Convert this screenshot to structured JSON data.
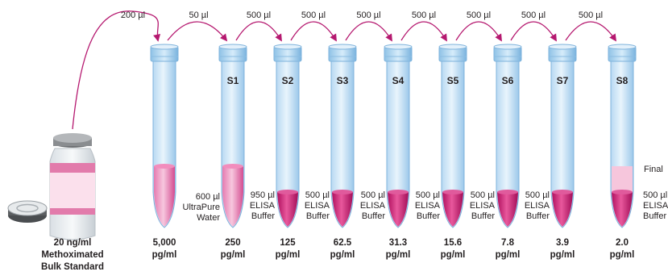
{
  "source": {
    "concentration": "20 ng/ml",
    "name_line1": "Methoximated",
    "name_line2": "Bulk Standard"
  },
  "transfers": [
    "200 µl",
    "50 µl",
    "500 µl",
    "500 µl",
    "500 µl",
    "500 µl",
    "500 µl",
    "500 µl",
    "500 µl"
  ],
  "tubes": [
    {
      "label": "",
      "conc_value": "5,000",
      "conc_unit": "pg/ml",
      "diluent": []
    },
    {
      "label": "S1",
      "conc_value": "250",
      "conc_unit": "pg/ml",
      "diluent": [
        "600 µl",
        "UltraPure",
        "Water"
      ]
    },
    {
      "label": "S2",
      "conc_value": "125",
      "conc_unit": "pg/ml",
      "diluent": [
        "950 µl",
        "ELISA",
        "Buffer"
      ]
    },
    {
      "label": "S3",
      "conc_value": "62.5",
      "conc_unit": "pg/ml",
      "diluent": [
        "500 µl",
        "ELISA",
        "Buffer"
      ]
    },
    {
      "label": "S4",
      "conc_value": "31.3",
      "conc_unit": "pg/ml",
      "diluent": [
        "500 µl",
        "ELISA",
        "Buffer"
      ]
    },
    {
      "label": "S5",
      "conc_value": "15.6",
      "conc_unit": "pg/ml",
      "diluent": [
        "500 µl",
        "ELISA",
        "Buffer"
      ]
    },
    {
      "label": "S6",
      "conc_value": "7.8",
      "conc_unit": "pg/ml",
      "diluent": [
        "500 µl",
        "ELISA",
        "Buffer"
      ]
    },
    {
      "label": "S7",
      "conc_value": "3.9",
      "conc_unit": "pg/ml",
      "diluent": [
        "500 µl",
        "ELISA",
        "Buffer"
      ]
    },
    {
      "label": "S8",
      "conc_value": "2.0",
      "conc_unit": "pg/ml",
      "diluent": [
        "500 µl",
        "ELISA",
        "Buffer"
      ]
    }
  ],
  "final_label": "Final",
  "colors": {
    "arrow": "#b5186f",
    "tube_fill": "#cde6f7",
    "tube_stroke": "#7fb3dc",
    "liquid": "#c9307f",
    "liquid_light": "#f3b6d2"
  }
}
